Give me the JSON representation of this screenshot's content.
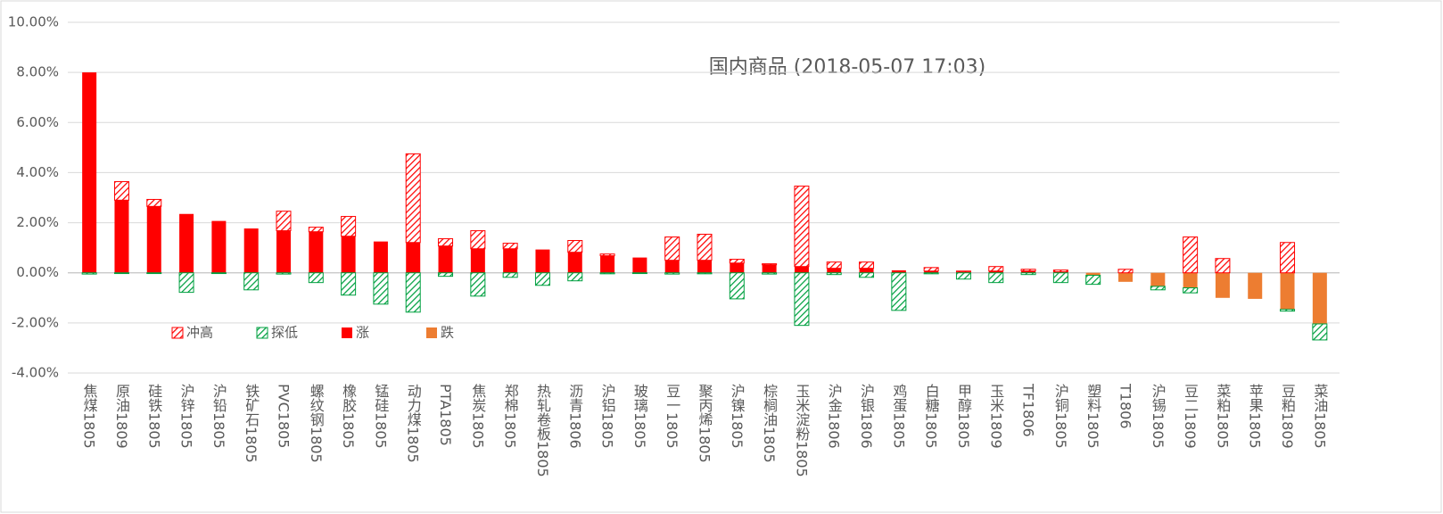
{
  "chart_data": {
    "type": "bar",
    "title": "国内商品 (2018-05-07 17:03)",
    "categories": [
      "焦煤1805",
      "原油1809",
      "硅铁1805",
      "沪锌1805",
      "沪铅1805",
      "铁矿石1805",
      "PVC1805",
      "螺纹钢1805",
      "橡胶1805",
      "锰硅1805",
      "动力煤1805",
      "PTA1805",
      "焦炭1805",
      "郑棉1805",
      "热轧卷板1805",
      "沥青1806",
      "沪铝1805",
      "玻璃1805",
      "豆一1805",
      "聚丙烯1805",
      "沪镍1805",
      "棕榈油1805",
      "玉米淀粉1805",
      "沪金1806",
      "沪银1806",
      "鸡蛋1805",
      "白糖1805",
      "甲醇1805",
      "玉米1809",
      "TF1806",
      "沪铜1805",
      "塑料1805",
      "T1806",
      "沪锡1805",
      "豆二1809",
      "菜粕1805",
      "苹果1805",
      "豆粕1809",
      "菜油1805"
    ],
    "series": [
      {
        "name": "冲高",
        "color": "#ff0000",
        "pattern": "hatch",
        "values": [
          0,
          0.74,
          0.28,
          0,
          0,
          0,
          0.78,
          0.18,
          0.79,
          0,
          3.54,
          0.29,
          0.72,
          0.22,
          0,
          0.47,
          0.07,
          0,
          0.93,
          1.04,
          0.15,
          0.04,
          3.21,
          0.25,
          0.25,
          0,
          0.14,
          0.04,
          0.18,
          0.07,
          0.07,
          0,
          0.14,
          0,
          1.43,
          0.57,
          0,
          1.21,
          0
        ]
      },
      {
        "name": "探低",
        "color": "#00a040",
        "pattern": "hatch",
        "values": [
          -0.05,
          -0.03,
          -0.03,
          -0.78,
          -0.03,
          -0.68,
          -0.05,
          -0.39,
          -0.89,
          -1.25,
          -1.57,
          -0.14,
          -0.93,
          -0.18,
          -0.5,
          -0.32,
          -0.04,
          -0.03,
          -0.05,
          -0.04,
          -1.04,
          -0.05,
          -2.1,
          -0.07,
          -0.18,
          -1.5,
          -0.04,
          -0.25,
          -0.39,
          -0.07,
          -0.39,
          -0.36,
          0,
          -0.14,
          -0.2,
          0,
          0,
          -0.07,
          -0.64
        ]
      },
      {
        "name": "涨",
        "color": "#ff0000",
        "pattern": "solid",
        "values": [
          8.0,
          2.9,
          2.65,
          2.35,
          2.07,
          1.77,
          1.68,
          1.64,
          1.46,
          1.25,
          1.21,
          1.07,
          0.96,
          0.96,
          0.93,
          0.82,
          0.68,
          0.61,
          0.5,
          0.5,
          0.39,
          0.32,
          0.25,
          0.18,
          0.18,
          0.1,
          0.07,
          0.03,
          0.07,
          0.07,
          0.04,
          0,
          0,
          0,
          0,
          0,
          0,
          0,
          0
        ]
      },
      {
        "name": "跌",
        "color": "#ed7d31",
        "pattern": "solid",
        "values": [
          0,
          0,
          0,
          0,
          0,
          0,
          0,
          0,
          0,
          0,
          0,
          0,
          0,
          0,
          0,
          0,
          0,
          0,
          0,
          0,
          0,
          0,
          0,
          0,
          0,
          0,
          0,
          0,
          0,
          0,
          0,
          -0.1,
          -0.36,
          -0.54,
          -0.6,
          -1.0,
          -1.04,
          -1.46,
          -2.04
        ]
      }
    ],
    "ylim": [
      -4,
      10
    ],
    "yticks": [
      {
        "value": -4,
        "label": "-4.00%"
      },
      {
        "value": -2,
        "label": "-2.00%"
      },
      {
        "value": 0,
        "label": "0.00%"
      },
      {
        "value": 2,
        "label": "2.00%"
      },
      {
        "value": 4,
        "label": "4.00%"
      },
      {
        "value": 6,
        "label": "6.00%"
      },
      {
        "value": 8,
        "label": "8.00%"
      },
      {
        "value": 10,
        "label": "10.00%"
      }
    ],
    "grid": true,
    "legend": "bottom-left"
  }
}
